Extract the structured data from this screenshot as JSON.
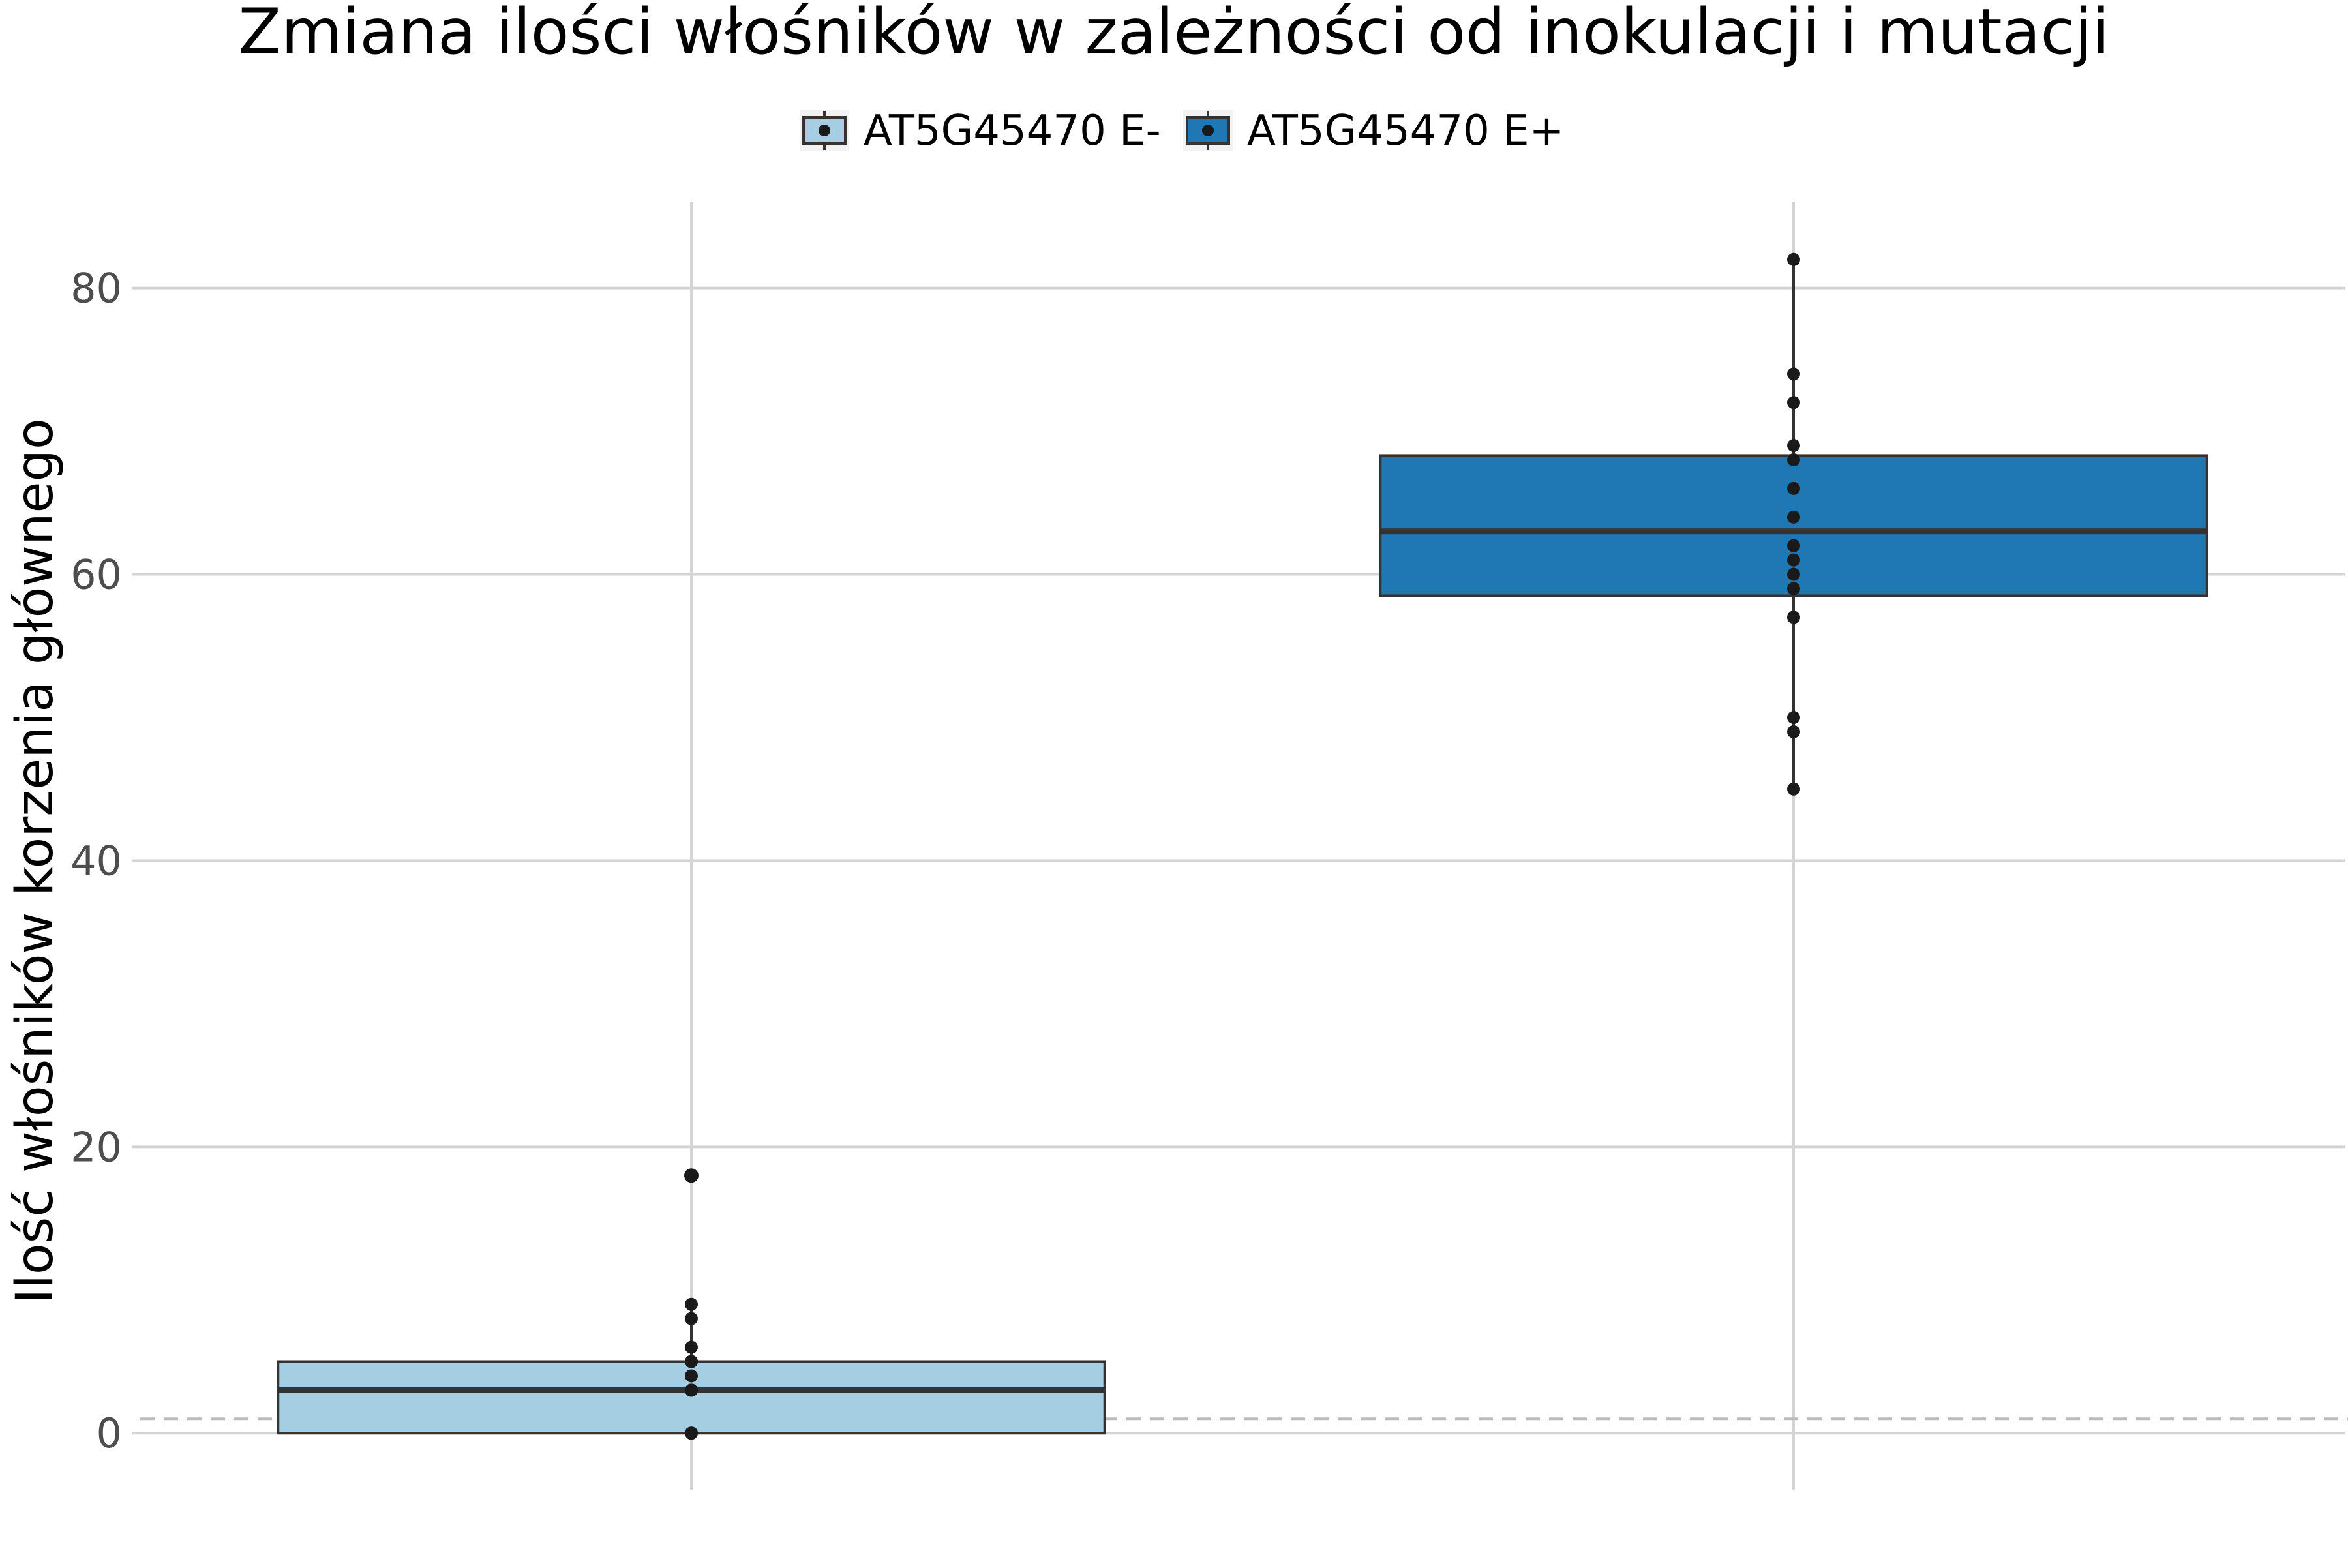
{
  "chart_data": {
    "type": "box",
    "title": "Zmiana ilości włośników w zależności od inokulacji i mutacji",
    "xlabel": "",
    "ylabel": "Ilość włośników korzenia głównego",
    "ylim": [
      -4,
      86
    ],
    "y_ticks": [
      0,
      20,
      40,
      60,
      80
    ],
    "grid": true,
    "legend_position": "top",
    "reference_line": {
      "y": 1,
      "style": "dashed",
      "color": "#bbbbbb"
    },
    "series": [
      {
        "name": "AT5G45470 E-",
        "color": "#a6cee3",
        "box": {
          "min": 0,
          "q1": 0,
          "median": 3,
          "q3": 5,
          "max": 9
        },
        "outliers": [
          18
        ],
        "points": [
          0,
          0,
          0,
          3,
          3,
          4,
          5,
          5,
          6,
          8,
          9,
          18
        ]
      },
      {
        "name": "AT5G45470 E+",
        "color": "#1f78b4",
        "box": {
          "min": 45,
          "q1": 58.5,
          "median": 63,
          "q3": 68.3,
          "max": 82
        },
        "outliers": [],
        "points": [
          45,
          49,
          50,
          57,
          59,
          60,
          61,
          62,
          64,
          66,
          68,
          69,
          72,
          74,
          82
        ]
      }
    ]
  }
}
